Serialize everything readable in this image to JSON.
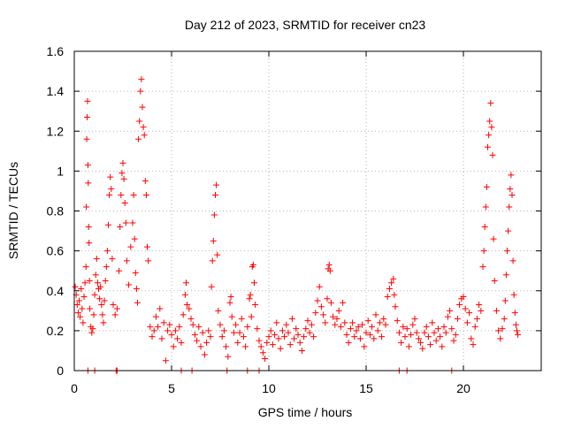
{
  "chart_data": {
    "type": "scatter",
    "title": "Day 212 of 2023, SRMTID for receiver cn23",
    "xlabel": "GPS time / hours",
    "ylabel": "SRMTID / TECUs",
    "xlim": [
      0,
      24
    ],
    "ylim": [
      0,
      1.6
    ],
    "xticks": [
      "0",
      "5",
      "10",
      "15",
      "20"
    ],
    "yticks": [
      "0",
      "0.2",
      "0.4",
      "0.6",
      "0.8",
      "1",
      "1.2",
      "1.4",
      "1.6"
    ],
    "grid": true,
    "marker": "+",
    "series_color": "#ff0000",
    "series": [
      {
        "name": "SRMTID",
        "points": [
          [
            0.05,
            0.42
          ],
          [
            0.1,
            0.38
          ],
          [
            0.15,
            0.33
          ],
          [
            0.2,
            0.29
          ],
          [
            0.25,
            0.35
          ],
          [
            0.3,
            0.27
          ],
          [
            0.35,
            0.41
          ],
          [
            0.4,
            0.31
          ],
          [
            0.45,
            0.24
          ],
          [
            0.5,
            0.37
          ],
          [
            0.55,
            0.44
          ],
          [
            0.6,
            0.52
          ],
          [
            0.62,
            0.82
          ],
          [
            0.64,
            1.16
          ],
          [
            0.66,
            1.27
          ],
          [
            0.68,
            1.35
          ],
          [
            0.7,
            1.03
          ],
          [
            0.72,
            0.94
          ],
          [
            0.74,
            0.72
          ],
          [
            0.76,
            0.64
          ],
          [
            0.78,
            0.45
          ],
          [
            0.8,
            0.31
          ],
          [
            0.85,
            0.22
          ],
          [
            0.9,
            0.19
          ],
          [
            0.95,
            0.21
          ],
          [
            1.0,
            0.28
          ],
          [
            1.05,
            0.38
          ],
          [
            1.1,
            0.48
          ],
          [
            1.15,
            0.56
          ],
          [
            1.2,
            0.44
          ],
          [
            1.25,
            0.41
          ],
          [
            1.3,
            0.36
          ],
          [
            1.35,
            0.42
          ],
          [
            1.4,
            0.33
          ],
          [
            1.45,
            0.28
          ],
          [
            1.5,
            0.24
          ],
          [
            1.55,
            0.35
          ],
          [
            1.6,
            0.45
          ],
          [
            1.65,
            0.52
          ],
          [
            1.7,
            0.6
          ],
          [
            1.75,
            0.73
          ],
          [
            1.8,
            0.88
          ],
          [
            1.85,
            0.97
          ],
          [
            1.9,
            0.91
          ],
          [
            1.95,
            0.56
          ],
          [
            2.0,
            0.33
          ],
          [
            2.1,
            0.28
          ],
          [
            2.2,
            0.31
          ],
          [
            2.3,
            0.5
          ],
          [
            2.35,
            0.72
          ],
          [
            2.4,
            0.88
          ],
          [
            2.45,
            0.99
          ],
          [
            2.5,
            1.04
          ],
          [
            2.55,
            0.96
          ],
          [
            2.6,
            0.84
          ],
          [
            2.65,
            0.74
          ],
          [
            2.7,
            0.55
          ],
          [
            2.8,
            0.43
          ],
          [
            2.9,
            0.62
          ],
          [
            3.0,
            0.74
          ],
          [
            3.05,
            0.88
          ],
          [
            3.1,
            0.66
          ],
          [
            3.15,
            0.49
          ],
          [
            3.2,
            0.41
          ],
          [
            3.25,
            0.34
          ],
          [
            3.3,
            1.16
          ],
          [
            3.35,
            1.25
          ],
          [
            3.4,
            1.4
          ],
          [
            3.45,
            1.46
          ],
          [
            3.5,
            1.32
          ],
          [
            3.55,
            1.22
          ],
          [
            3.6,
            1.18
          ],
          [
            3.65,
            0.95
          ],
          [
            3.7,
            0.88
          ],
          [
            3.75,
            0.62
          ],
          [
            3.8,
            0.55
          ],
          [
            3.9,
            0.22
          ],
          [
            4.0,
            0.17
          ],
          [
            4.1,
            0.2
          ],
          [
            4.2,
            0.27
          ],
          [
            4.3,
            0.22
          ],
          [
            4.4,
            0.31
          ],
          [
            4.5,
            0.16
          ],
          [
            4.6,
            0.24
          ],
          [
            4.7,
            0.05
          ],
          [
            4.8,
            0.2
          ],
          [
            4.9,
            0.23
          ],
          [
            5.0,
            0.18
          ],
          [
            5.1,
            0.12
          ],
          [
            5.2,
            0.2
          ],
          [
            5.3,
            0.16
          ],
          [
            5.4,
            0.22
          ],
          [
            5.5,
            0.14
          ],
          [
            5.6,
            0.28
          ],
          [
            5.7,
            0.38
          ],
          [
            5.75,
            0.44
          ],
          [
            5.8,
            0.33
          ],
          [
            5.9,
            0.31
          ],
          [
            6.0,
            0.26
          ],
          [
            6.1,
            0.23
          ],
          [
            6.2,
            0.18
          ],
          [
            6.3,
            0.15
          ],
          [
            6.4,
            0.22
          ],
          [
            6.5,
            0.12
          ],
          [
            6.6,
            0.19
          ],
          [
            6.7,
            0.08
          ],
          [
            6.8,
            0.14
          ],
          [
            6.9,
            0.2
          ],
          [
            7.0,
            0.17
          ],
          [
            7.05,
            0.42
          ],
          [
            7.1,
            0.55
          ],
          [
            7.15,
            0.65
          ],
          [
            7.2,
            0.78
          ],
          [
            7.25,
            0.88
          ],
          [
            7.3,
            0.93
          ],
          [
            7.35,
            0.58
          ],
          [
            7.4,
            0.3
          ],
          [
            7.5,
            0.23
          ],
          [
            7.6,
            0.17
          ],
          [
            7.7,
            0.2
          ],
          [
            7.8,
            0.12
          ],
          [
            7.9,
            0.07
          ],
          [
            8.0,
            0.34
          ],
          [
            8.05,
            0.37
          ],
          [
            8.1,
            0.27
          ],
          [
            8.2,
            0.19
          ],
          [
            8.3,
            0.23
          ],
          [
            8.4,
            0.14
          ],
          [
            8.5,
            0.19
          ],
          [
            8.6,
            0.26
          ],
          [
            8.7,
            0.17
          ],
          [
            8.8,
            0.12
          ],
          [
            8.9,
            0.22
          ],
          [
            9.0,
            0.36
          ],
          [
            9.05,
            0.38
          ],
          [
            9.1,
            0.27
          ],
          [
            9.15,
            0.52
          ],
          [
            9.2,
            0.53
          ],
          [
            9.25,
            0.44
          ],
          [
            9.3,
            0.33
          ],
          [
            9.4,
            0.21
          ],
          [
            9.5,
            0.15
          ],
          [
            9.6,
            0.12
          ],
          [
            9.7,
            0.09
          ],
          [
            9.8,
            0.06
          ],
          [
            9.9,
            0.14
          ],
          [
            10.0,
            0.17
          ],
          [
            10.1,
            0.2
          ],
          [
            10.2,
            0.13
          ],
          [
            10.3,
            0.18
          ],
          [
            10.4,
            0.24
          ],
          [
            10.5,
            0.16
          ],
          [
            10.6,
            0.11
          ],
          [
            10.7,
            0.2
          ],
          [
            10.8,
            0.17
          ],
          [
            10.9,
            0.23
          ],
          [
            11.0,
            0.19
          ],
          [
            11.1,
            0.13
          ],
          [
            11.2,
            0.26
          ],
          [
            11.3,
            0.16
          ],
          [
            11.4,
            0.21
          ],
          [
            11.5,
            0.18
          ],
          [
            11.6,
            0.14
          ],
          [
            11.7,
            0.1
          ],
          [
            11.8,
            0.17
          ],
          [
            11.9,
            0.21
          ],
          [
            12.0,
            0.25
          ],
          [
            12.1,
            0.19
          ],
          [
            12.2,
            0.23
          ],
          [
            12.3,
            0.17
          ],
          [
            12.4,
            0.29
          ],
          [
            12.5,
            0.35
          ],
          [
            12.6,
            0.42
          ],
          [
            12.7,
            0.32
          ],
          [
            12.8,
            0.28
          ],
          [
            12.9,
            0.24
          ],
          [
            13.0,
            0.36
          ],
          [
            13.05,
            0.51
          ],
          [
            13.1,
            0.53
          ],
          [
            13.15,
            0.5
          ],
          [
            13.2,
            0.34
          ],
          [
            13.3,
            0.27
          ],
          [
            13.4,
            0.23
          ],
          [
            13.5,
            0.26
          ],
          [
            13.6,
            0.3
          ],
          [
            13.7,
            0.22
          ],
          [
            13.8,
            0.34
          ],
          [
            13.9,
            0.24
          ],
          [
            14.0,
            0.18
          ],
          [
            14.1,
            0.14
          ],
          [
            14.2,
            0.21
          ],
          [
            14.3,
            0.24
          ],
          [
            14.4,
            0.17
          ],
          [
            14.5,
            0.2
          ],
          [
            14.6,
            0.22
          ],
          [
            14.7,
            0.16
          ],
          [
            14.8,
            0.23
          ],
          [
            14.9,
            0.12
          ],
          [
            15.0,
            0.19
          ],
          [
            15.1,
            0.25
          ],
          [
            15.2,
            0.18
          ],
          [
            15.3,
            0.22
          ],
          [
            15.4,
            0.16
          ],
          [
            15.5,
            0.28
          ],
          [
            15.6,
            0.2
          ],
          [
            15.7,
            0.24
          ],
          [
            15.8,
            0.17
          ],
          [
            15.9,
            0.26
          ],
          [
            16.0,
            0.23
          ],
          [
            16.1,
            0.37
          ],
          [
            16.2,
            0.41
          ],
          [
            16.3,
            0.44
          ],
          [
            16.4,
            0.46
          ],
          [
            16.45,
            0.38
          ],
          [
            16.5,
            0.32
          ],
          [
            16.6,
            0.25
          ],
          [
            16.7,
            0.19
          ],
          [
            16.8,
            0.14
          ],
          [
            16.9,
            0.22
          ],
          [
            17.0,
            0.17
          ],
          [
            17.1,
            0.21
          ],
          [
            17.2,
            0.12
          ],
          [
            17.3,
            0.18
          ],
          [
            17.4,
            0.23
          ],
          [
            17.5,
            0.26
          ],
          [
            17.6,
            0.19
          ],
          [
            17.7,
            0.16
          ],
          [
            17.8,
            0.14
          ],
          [
            17.9,
            0.11
          ],
          [
            18.0,
            0.19
          ],
          [
            18.1,
            0.22
          ],
          [
            18.2,
            0.17
          ],
          [
            18.3,
            0.13
          ],
          [
            18.4,
            0.24
          ],
          [
            18.5,
            0.19
          ],
          [
            18.6,
            0.15
          ],
          [
            18.7,
            0.21
          ],
          [
            18.8,
            0.17
          ],
          [
            18.9,
            0.12
          ],
          [
            19.0,
            0.22
          ],
          [
            19.1,
            0.19
          ],
          [
            19.2,
            0.27
          ],
          [
            19.3,
            0.3
          ],
          [
            19.4,
            0.21
          ],
          [
            19.5,
            0.15
          ],
          [
            19.6,
            0.18
          ],
          [
            19.7,
            0.26
          ],
          [
            19.8,
            0.33
          ],
          [
            19.9,
            0.36
          ],
          [
            20.0,
            0.37
          ],
          [
            20.1,
            0.31
          ],
          [
            20.2,
            0.24
          ],
          [
            20.3,
            0.29
          ],
          [
            20.4,
            0.16
          ],
          [
            20.5,
            0.13
          ],
          [
            20.6,
            0.22
          ],
          [
            20.7,
            0.26
          ],
          [
            20.8,
            0.33
          ],
          [
            20.9,
            0.3
          ],
          [
            21.0,
            0.52
          ],
          [
            21.05,
            0.6
          ],
          [
            21.1,
            0.72
          ],
          [
            21.15,
            0.82
          ],
          [
            21.2,
            0.92
          ],
          [
            21.25,
            1.12
          ],
          [
            21.3,
            1.18
          ],
          [
            21.35,
            1.25
          ],
          [
            21.4,
            1.34
          ],
          [
            21.45,
            1.22
          ],
          [
            21.5,
            1.08
          ],
          [
            21.55,
            0.66
          ],
          [
            21.6,
            0.45
          ],
          [
            21.7,
            0.3
          ],
          [
            21.8,
            0.2
          ],
          [
            21.9,
            0.16
          ],
          [
            22.0,
            0.21
          ],
          [
            22.1,
            0.26
          ],
          [
            22.15,
            0.35
          ],
          [
            22.2,
            0.48
          ],
          [
            22.25,
            0.6
          ],
          [
            22.3,
            0.7
          ],
          [
            22.35,
            0.82
          ],
          [
            22.4,
            0.91
          ],
          [
            22.45,
            0.98
          ],
          [
            22.5,
            0.88
          ],
          [
            22.55,
            0.55
          ],
          [
            22.6,
            0.38
          ],
          [
            22.65,
            0.29
          ],
          [
            22.7,
            0.23
          ],
          [
            22.75,
            0.2
          ],
          [
            22.8,
            0.18
          ],
          [
            0.7,
            0.0
          ],
          [
            1.05,
            0.0
          ],
          [
            2.15,
            0.0
          ],
          [
            2.2,
            0.0
          ],
          [
            5.5,
            0.0
          ],
          [
            6.05,
            0.0
          ],
          [
            7.85,
            0.0
          ],
          [
            8.9,
            0.0
          ],
          [
            9.5,
            0.0
          ],
          [
            16.7,
            0.0
          ],
          [
            17.1,
            0.0
          ],
          [
            19.4,
            0.0
          ]
        ]
      }
    ]
  }
}
